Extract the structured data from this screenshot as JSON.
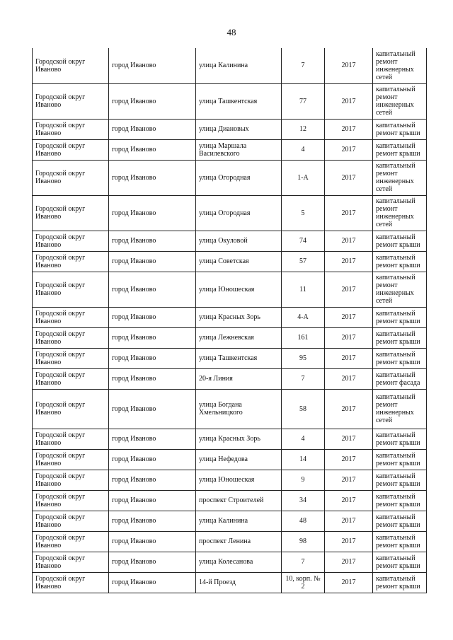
{
  "page_number": "48",
  "rows": [
    {
      "district": "Городской округ Иваново",
      "city": "город Иваново",
      "street": "улица Калинина",
      "house": "7",
      "year": "2017",
      "work": "капитальный ремонт инженерных сетей"
    },
    {
      "district": "Городской округ Иваново",
      "city": "город Иваново",
      "street": "улица Ташкентская",
      "house": "77",
      "year": "2017",
      "work": "капитальный ремонт инженерных сетей"
    },
    {
      "district": "Городской округ Иваново",
      "city": "город Иваново",
      "street": "улица Диановых",
      "house": "12",
      "year": "2017",
      "work": "капитальный ремонт крыши"
    },
    {
      "district": "Городской округ Иваново",
      "city": "город Иваново",
      "street": "улица Маршала Василевского",
      "house": "4",
      "year": "2017",
      "work": "капитальный ремонт крыши"
    },
    {
      "district": "Городской округ Иваново",
      "city": "город Иваново",
      "street": "улица Огородная",
      "house": "1-А",
      "year": "2017",
      "work": "капитальный ремонт инженерных сетей"
    },
    {
      "district": "Городской округ Иваново",
      "city": "город Иваново",
      "street": "улица Огородная",
      "house": "5",
      "year": "2017",
      "work": "капитальный ремонт инженерных сетей"
    },
    {
      "district": "Городской округ Иваново",
      "city": "город Иваново",
      "street": "улица Окуловой",
      "house": "74",
      "year": "2017",
      "work": "капитальный ремонт крыши"
    },
    {
      "district": "Городской округ Иваново",
      "city": "город Иваново",
      "street": "улица Советская",
      "house": "57",
      "year": "2017",
      "work": "капитальный ремонт крыши"
    },
    {
      "district": "Городской округ Иваново",
      "city": "город Иваново",
      "street": "улица Юношеская",
      "house": "11",
      "year": "2017",
      "work": "капитальный ремонт инженерных сетей"
    },
    {
      "district": "Городской округ Иваново",
      "city": "город Иваново",
      "street": "улица Красных Зорь",
      "house": "4-А",
      "year": "2017",
      "work": "капитальный ремонт крыши"
    },
    {
      "district": "Городской округ Иваново",
      "city": "город Иваново",
      "street": "улица Лежневская",
      "house": "161",
      "year": "2017",
      "work": "капитальный ремонт крыши"
    },
    {
      "district": "Городской округ Иваново",
      "city": "город Иваново",
      "street": "улица Ташкентская",
      "house": "95",
      "year": "2017",
      "work": "капитальный ремонт крыши"
    },
    {
      "district": "Городской округ Иваново",
      "city": "город Иваново",
      "street": "20-я Линия",
      "house": "7",
      "year": "2017",
      "work": "капитальный ремонт фасада"
    },
    {
      "district": "Городской округ Иваново",
      "city": "город Иваново",
      "street": "улица Богдана Хмельницкого",
      "house": "58",
      "year": "2017",
      "work": "капитальный ремонт инженерных сетей"
    },
    {
      "district": "Городской округ Иваново",
      "city": "город Иваново",
      "street": "улица Красных Зорь",
      "house": "4",
      "year": "2017",
      "work": "капитальный ремонт крыши"
    },
    {
      "district": "Городской округ Иваново",
      "city": "город Иваново",
      "street": "улица Нефедова",
      "house": "14",
      "year": "2017",
      "work": "капитальный ремонт крыши"
    },
    {
      "district": "Городской округ Иваново",
      "city": "город Иваново",
      "street": "улица Юношеская",
      "house": "9",
      "year": "2017",
      "work": "капитальный ремонт крыши"
    },
    {
      "district": "Городской округ Иваново",
      "city": "город Иваново",
      "street": "проспект Строителей",
      "house": "34",
      "year": "2017",
      "work": "капитальный ремонт крыши"
    },
    {
      "district": "Городской округ Иваново",
      "city": "город Иваново",
      "street": "улица Калинина",
      "house": "48",
      "year": "2017",
      "work": "капитальный ремонт крыши"
    },
    {
      "district": "Городской округ Иваново",
      "city": "город Иваново",
      "street": "проспект Ленина",
      "house": "98",
      "year": "2017",
      "work": "капитальный ремонт крыши"
    },
    {
      "district": "Городской округ Иваново",
      "city": "город Иваново",
      "street": "улица Колесанова",
      "house": "7",
      "year": "2017",
      "work": "капитальный ремонт крыши"
    },
    {
      "district": "Городской округ Иваново",
      "city": "город Иваново",
      "street": "14-й Проезд",
      "house": "10, корп. № 2",
      "year": "2017",
      "work": "капитальный ремонт крыши"
    }
  ]
}
